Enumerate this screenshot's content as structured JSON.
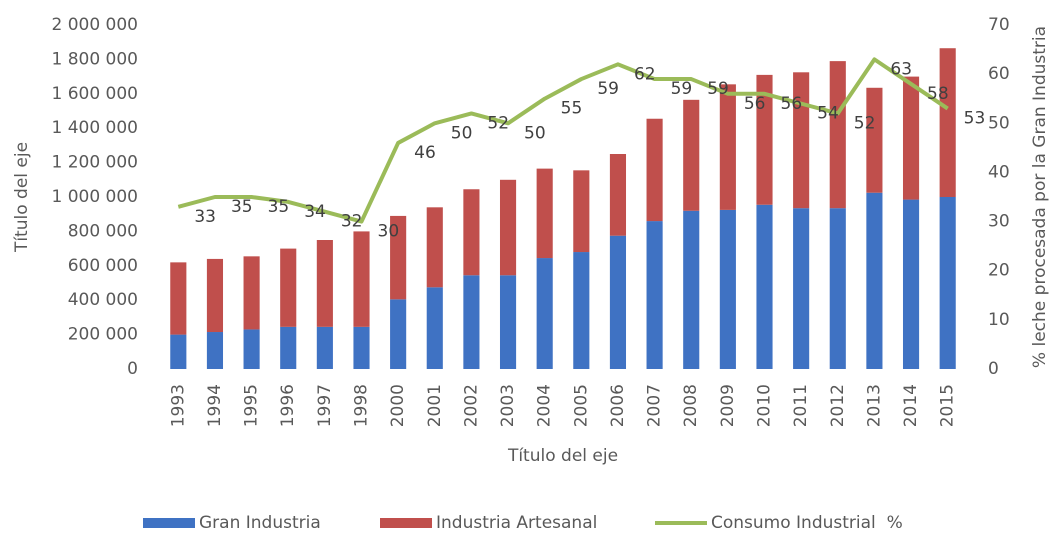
{
  "chart_data": {
    "type": "bar",
    "categories": [
      "1993",
      "1994",
      "1995",
      "1996",
      "1997",
      "1998",
      "2000",
      "2001",
      "2002",
      "2003",
      "2004",
      "2005",
      "2006",
      "2007",
      "2008",
      "2009",
      "2010",
      "2011",
      "2012",
      "2013",
      "2014",
      "2015"
    ],
    "series": [
      {
        "name": "Gran Industria",
        "type": "bar",
        "color": "#3f72c3",
        "values": [
          200000,
          215000,
          230000,
          245000,
          245000,
          245000,
          405000,
          475000,
          545000,
          545000,
          645000,
          680000,
          775000,
          860000,
          920000,
          925000,
          955000,
          935000,
          935000,
          1025000,
          985000,
          1000000
        ]
      },
      {
        "name": "Industria Artesanal",
        "type": "bar",
        "color": "#c04f4c",
        "values": [
          420000,
          425000,
          425000,
          455000,
          505000,
          555000,
          485000,
          465000,
          500000,
          555000,
          520000,
          475000,
          475000,
          595000,
          645000,
          730000,
          755000,
          790000,
          855000,
          610000,
          715000,
          865000
        ]
      },
      {
        "name": "Consumo Industrial  %",
        "type": "line",
        "axis": "y2",
        "color": "#9bbb59",
        "values": [
          33,
          35,
          35,
          34,
          32,
          30,
          46,
          50,
          52,
          50,
          55,
          59,
          62,
          59,
          59,
          56,
          56,
          54,
          52,
          63,
          58,
          53
        ]
      }
    ],
    "xlabel": "Título del eje",
    "ylabel": "Título del eje",
    "y2label": "% leche procesada por la Gran Industria",
    "ylim": [
      0,
      2000000
    ],
    "yticks": [
      0,
      {
        "value": 200000,
        "label": "200 000"
      },
      {
        "value": 400000,
        "label": "400 000"
      },
      {
        "value": 600000,
        "label": "600 000"
      },
      {
        "value": 800000,
        "label": "800 000"
      },
      {
        "value": 1000000,
        "label": "1 000 000"
      },
      {
        "value": 1200000,
        "label": "1 200 000"
      },
      {
        "value": 1400000,
        "label": "1 400 000"
      },
      {
        "value": 1600000,
        "label": "1 600 000"
      },
      {
        "value": 1800000,
        "label": "1 800 000"
      },
      {
        "value": 2000000,
        "label": "2 000 000"
      }
    ],
    "y2lim": [
      0,
      70
    ],
    "y2ticks": [
      0,
      10,
      20,
      30,
      40,
      50,
      60,
      70
    ],
    "legend": "bottom",
    "grid": false
  }
}
